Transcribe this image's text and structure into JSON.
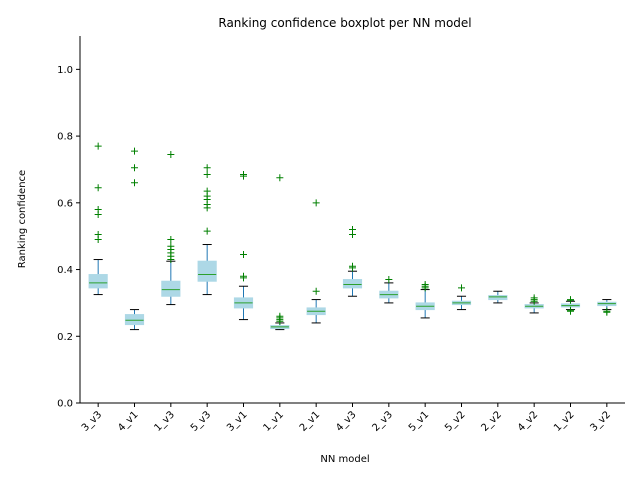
{
  "chart_data": {
    "type": "boxplot",
    "title": "Ranking confidence boxplot per NN model",
    "xlabel": "NN model",
    "ylabel": "Ranking confidence",
    "ylim": [
      0.0,
      1.1
    ],
    "yticks": [
      "0.0",
      "0.2",
      "0.4",
      "0.6",
      "0.8",
      "1.0"
    ],
    "grid": false,
    "colors": {
      "box_fill": "#add8e6",
      "whisker": "#1f77b4",
      "median": "#2ca02c",
      "cap": "#000000",
      "flier": "#008000"
    },
    "boxes": [
      {
        "label": "3_v3",
        "whisker_low": 0.325,
        "q1": 0.345,
        "median": 0.36,
        "q3": 0.385,
        "whisker_high": 0.43,
        "outliers": [
          0.77,
          0.645,
          0.58,
          0.565,
          0.505,
          0.49
        ]
      },
      {
        "label": "4_v1",
        "whisker_low": 0.22,
        "q1": 0.235,
        "median": 0.248,
        "q3": 0.265,
        "whisker_high": 0.28,
        "outliers": [
          0.755,
          0.705,
          0.66
        ]
      },
      {
        "label": "1_v3",
        "whisker_low": 0.295,
        "q1": 0.32,
        "median": 0.34,
        "q3": 0.365,
        "whisker_high": 0.425,
        "outliers": [
          0.745,
          0.49,
          0.47,
          0.46,
          0.45,
          0.44,
          0.43
        ]
      },
      {
        "label": "5_v3",
        "whisker_low": 0.325,
        "q1": 0.365,
        "median": 0.385,
        "q3": 0.425,
        "whisker_high": 0.475,
        "outliers": [
          0.705,
          0.685,
          0.635,
          0.62,
          0.61,
          0.595,
          0.585,
          0.515
        ]
      },
      {
        "label": "3_v1",
        "whisker_low": 0.25,
        "q1": 0.285,
        "median": 0.3,
        "q3": 0.315,
        "whisker_high": 0.35,
        "outliers": [
          0.685,
          0.68,
          0.445,
          0.38,
          0.375
        ]
      },
      {
        "label": "1_v1",
        "whisker_low": 0.22,
        "q1": 0.223,
        "median": 0.228,
        "q3": 0.232,
        "whisker_high": 0.24,
        "outliers": [
          0.675,
          0.26,
          0.255,
          0.25,
          0.245
        ]
      },
      {
        "label": "2_v1",
        "whisker_low": 0.24,
        "q1": 0.265,
        "median": 0.275,
        "q3": 0.285,
        "whisker_high": 0.31,
        "outliers": [
          0.6,
          0.335
        ]
      },
      {
        "label": "4_v3",
        "whisker_low": 0.32,
        "q1": 0.345,
        "median": 0.355,
        "q3": 0.37,
        "whisker_high": 0.395,
        "outliers": [
          0.52,
          0.505,
          0.41,
          0.405
        ]
      },
      {
        "label": "2_v3",
        "whisker_low": 0.3,
        "q1": 0.315,
        "median": 0.325,
        "q3": 0.335,
        "whisker_high": 0.36,
        "outliers": [
          0.37
        ]
      },
      {
        "label": "5_v1",
        "whisker_low": 0.255,
        "q1": 0.28,
        "median": 0.29,
        "q3": 0.3,
        "whisker_high": 0.34,
        "outliers": [
          0.355,
          0.35,
          0.345
        ]
      },
      {
        "label": "5_v2",
        "whisker_low": 0.28,
        "q1": 0.295,
        "median": 0.3,
        "q3": 0.305,
        "whisker_high": 0.32,
        "outliers": [
          0.345
        ]
      },
      {
        "label": "2_v2",
        "whisker_low": 0.3,
        "q1": 0.31,
        "median": 0.318,
        "q3": 0.322,
        "whisker_high": 0.335,
        "outliers": []
      },
      {
        "label": "4_v2",
        "whisker_low": 0.27,
        "q1": 0.285,
        "median": 0.29,
        "q3": 0.295,
        "whisker_high": 0.3,
        "outliers": [
          0.315,
          0.31,
          0.305
        ]
      },
      {
        "label": "1_v2",
        "whisker_low": 0.28,
        "q1": 0.288,
        "median": 0.292,
        "q3": 0.297,
        "whisker_high": 0.305,
        "outliers": [
          0.31,
          0.308,
          0.278,
          0.275
        ]
      },
      {
        "label": "3_v2",
        "whisker_low": 0.28,
        "q1": 0.292,
        "median": 0.298,
        "q3": 0.302,
        "whisker_high": 0.31,
        "outliers": [
          0.275,
          0.272
        ]
      }
    ]
  }
}
